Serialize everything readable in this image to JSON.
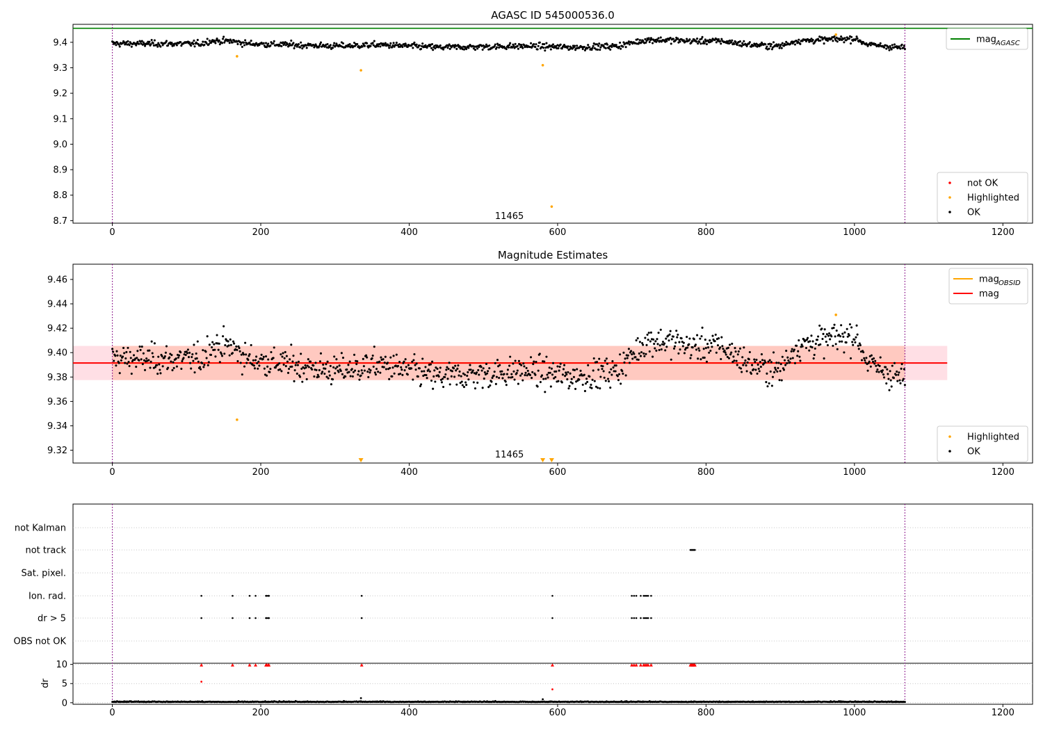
{
  "figure": {
    "panel_titles": [
      "AGASC ID 545000536.0",
      "Magnitude Estimates",
      ""
    ],
    "obsid_label": "11465"
  },
  "colors": {
    "ok": "#000000",
    "not_ok": "#ff0000",
    "highlighted": "#ffa500",
    "mag_agasc": "#008000",
    "mag_obsid": "#ffa500",
    "mag": "#ff0000",
    "obsid_boundary": "#800080",
    "band_pink": "#ffc0cb",
    "band_orange": "#ffa07a",
    "grid": "#b0b0b0"
  },
  "chart_data": [
    {
      "type": "scatter",
      "title": "AGASC ID 545000536.0",
      "xlim": [
        -53,
        1240
      ],
      "ylim": [
        8.69,
        9.4705
      ],
      "xticks": [
        0,
        200,
        400,
        600,
        800,
        1000,
        1200
      ],
      "xtick_labels": [
        "0",
        "200",
        "400",
        "600",
        "800",
        "1000",
        "1200"
      ],
      "yticks": [
        8.7,
        8.8,
        8.9,
        9.0,
        9.1,
        9.2,
        9.3,
        9.4
      ],
      "ytick_labels": [
        "8.7",
        "8.8",
        "8.9",
        "9.0",
        "9.1",
        "9.2",
        "9.3",
        "9.4"
      ],
      "hlines": [
        {
          "name": "mag_AGASC",
          "y": 9.455,
          "color": "#008000"
        }
      ],
      "obsid_boundaries": [
        0,
        1068
      ],
      "obsid_annotation": {
        "text": "11465",
        "x": 535,
        "y": 8.72
      },
      "legends": [
        {
          "placement": "upper right",
          "entries": [
            {
              "label": "mag",
              "sub": "AGASC",
              "style": "line",
              "color": "#008000"
            }
          ]
        },
        {
          "placement": "lower right",
          "entries": [
            {
              "label": "not OK",
              "style": "dot",
              "color": "#ff0000"
            },
            {
              "label": "Highlighted",
              "style": "dot",
              "color": "#ffa500"
            },
            {
              "label": "OK",
              "style": "dot",
              "color": "#000000"
            }
          ]
        }
      ],
      "series": [
        {
          "name": "OK",
          "color": "#000000",
          "generated": {
            "n_points": 1069,
            "x_start": 0,
            "x_end": 1068
          }
        },
        {
          "name": "Highlighted",
          "color": "#ffa500",
          "x": [
            168,
            335,
            580,
            592,
            975
          ],
          "y": [
            9.345,
            9.29,
            9.31,
            8.755,
            9.43
          ]
        }
      ],
      "mean_curve": [
        [
          0,
          9.395
        ],
        [
          120,
          9.394
        ],
        [
          130,
          9.405
        ],
        [
          160,
          9.405
        ],
        [
          180,
          9.395
        ],
        [
          300,
          9.385
        ],
        [
          360,
          9.39
        ],
        [
          440,
          9.38
        ],
        [
          560,
          9.385
        ],
        [
          620,
          9.38
        ],
        [
          680,
          9.385
        ],
        [
          720,
          9.41
        ],
        [
          760,
          9.408
        ],
        [
          780,
          9.405
        ],
        [
          820,
          9.405
        ],
        [
          860,
          9.39
        ],
        [
          900,
          9.385
        ],
        [
          920,
          9.405
        ],
        [
          1000,
          9.415
        ],
        [
          1020,
          9.39
        ],
        [
          1068,
          9.378
        ]
      ]
    },
    {
      "type": "scatter",
      "title": "Magnitude Estimates",
      "xlim": [
        -53,
        1240
      ],
      "ylim": [
        9.3095,
        9.4725
      ],
      "xticks": [
        0,
        200,
        400,
        600,
        800,
        1000,
        1200
      ],
      "xtick_labels": [
        "0",
        "200",
        "400",
        "600",
        "800",
        "1000",
        "1200"
      ],
      "yticks": [
        9.32,
        9.34,
        9.36,
        9.38,
        9.4,
        9.42,
        9.44,
        9.46
      ],
      "ytick_labels": [
        "9.32",
        "9.34",
        "9.36",
        "9.38",
        "9.40",
        "9.42",
        "9.44",
        "9.46"
      ],
      "hlines": [
        {
          "name": "mag_OBSID",
          "y": 9.3915,
          "x_range": [
            0,
            1068
          ],
          "color": "#ffa500"
        },
        {
          "name": "mag",
          "y": 9.3915,
          "color": "#ff0000"
        }
      ],
      "bands": [
        {
          "name": "mag",
          "y_range": [
            9.3775,
            9.4055
          ],
          "x_range": [
            -53,
            1125
          ],
          "color": "#ffc0cb"
        },
        {
          "name": "mag_OBSID",
          "y_range": [
            9.3775,
            9.4055
          ],
          "x_range": [
            0,
            1068
          ],
          "color": "#ffa07a"
        }
      ],
      "obsid_boundaries": [
        0,
        1068
      ],
      "obsid_annotation": {
        "text": "11465",
        "x": 535,
        "y": 9.317
      },
      "legends": [
        {
          "placement": "upper right",
          "entries": [
            {
              "label": "mag",
              "sub": "OBSID",
              "style": "line",
              "color": "#ffa500"
            },
            {
              "label": "mag",
              "style": "line",
              "color": "#ff0000"
            }
          ]
        },
        {
          "placement": "lower right",
          "entries": [
            {
              "label": "Highlighted",
              "style": "dot",
              "color": "#ffa500"
            },
            {
              "label": "OK",
              "style": "dot",
              "color": "#000000"
            }
          ]
        }
      ],
      "series": [
        {
          "name": "OK",
          "color": "#000000",
          "generated": {
            "n_points": 1069,
            "x_start": 0,
            "x_end": 1068
          }
        },
        {
          "name": "Highlighted",
          "color": "#ffa500",
          "x": [
            168,
            975
          ],
          "y": [
            9.345,
            9.431
          ]
        },
        {
          "name": "Highlighted (below axis)",
          "color": "#ffa500",
          "marker": "triangle-down",
          "x": [
            335,
            580,
            592
          ],
          "y": [
            9.311,
            9.311,
            9.311
          ]
        }
      ]
    },
    {
      "type": "scatter",
      "title": "",
      "xlim": [
        -53,
        1240
      ],
      "categories": [
        "not Kalman",
        "not track",
        "Sat. pixel.",
        "Ion. rad.",
        "dr > 5",
        "OBS not OK"
      ],
      "obsid_boundaries": [
        0,
        1068
      ],
      "flag_points": {
        "not Kalman": [],
        "not track": [
          779,
          780,
          781,
          782,
          783,
          784,
          785
        ],
        "Sat. pixel.": [],
        "Ion. rad.": [
          120,
          162,
          185,
          193,
          207,
          208,
          210,
          211,
          336,
          593,
          700,
          703,
          706,
          712,
          716,
          718,
          720,
          722,
          726
        ],
        "dr > 5": [
          120,
          162,
          185,
          193,
          207,
          208,
          210,
          211,
          336,
          593,
          700,
          703,
          706,
          712,
          716,
          718,
          720,
          722,
          726
        ],
        "OBS not OK": []
      },
      "dr": {
        "ylabel": "dr",
        "ylim": [
          -0.4,
          10.3
        ],
        "yticks": [
          0,
          5,
          10
        ],
        "ytick_labels": [
          "0",
          "5",
          "10"
        ],
        "generated": {
          "n_points": 1069,
          "x_start": 0,
          "x_end": 1068
        },
        "outliers_black": {
          "x": [
            335,
            580
          ],
          "y": [
            1.2,
            0.9
          ]
        },
        "outliers_red": {
          "x": [
            120,
            593
          ],
          "y": [
            5.5,
            3.5
          ]
        },
        "clipped_red": [
          120,
          162,
          185,
          193,
          207,
          208,
          210,
          211,
          336,
          593,
          700,
          703,
          706,
          712,
          716,
          718,
          720,
          722,
          726,
          779,
          780,
          781,
          782,
          783,
          784,
          785
        ]
      }
    }
  ]
}
